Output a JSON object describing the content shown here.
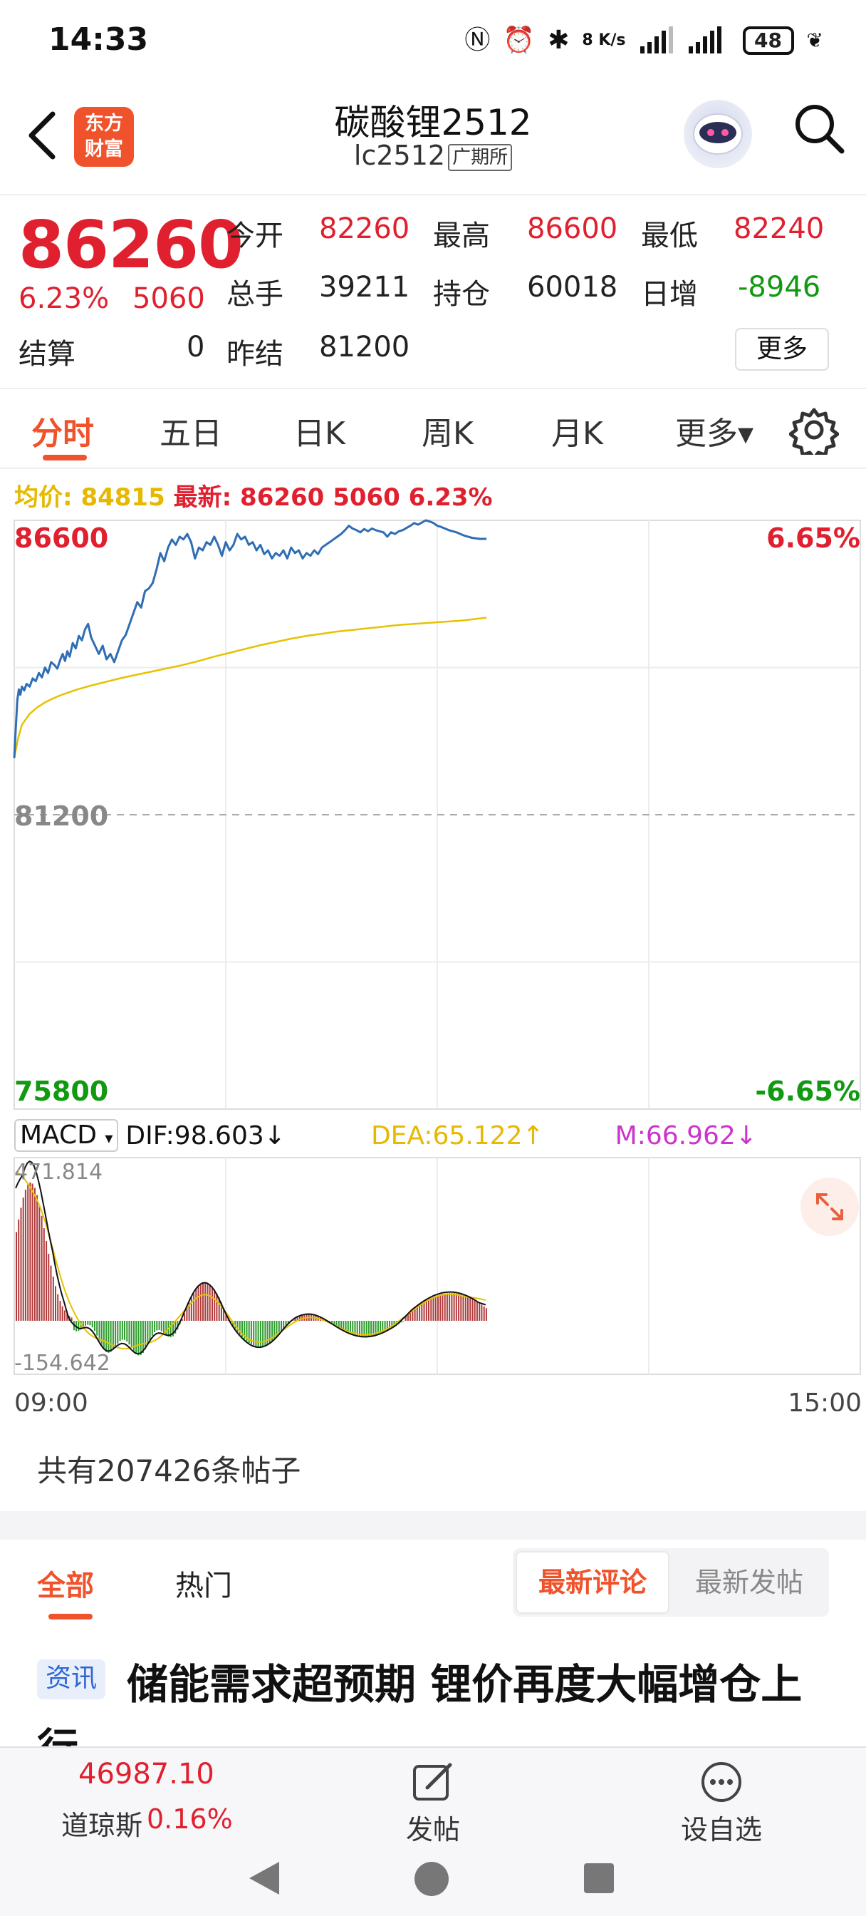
{
  "status_bar": {
    "time": "14:33",
    "net_speed": "8 K/s",
    "battery": "48"
  },
  "header": {
    "title": "碳酸锂2512",
    "code": "lc2512",
    "exchange": "广期所",
    "logo_text": [
      "东方",
      "财富"
    ]
  },
  "quote": {
    "price": "86260",
    "change_pct": "6.23%",
    "change_abs": "5060",
    "settle_label": "结算",
    "settle_value": "0",
    "fields": [
      {
        "label": "今开",
        "value": "82260",
        "color": "#e0202e"
      },
      {
        "label": "最高",
        "value": "86600",
        "color": "#e0202e"
      },
      {
        "label": "最低",
        "value": "82240",
        "color": "#e0202e"
      },
      {
        "label": "总手",
        "value": "39211",
        "color": "#222222"
      },
      {
        "label": "持仓",
        "value": "60018",
        "color": "#222222"
      },
      {
        "label": "日增",
        "value": "-8946",
        "color": "#119911"
      },
      {
        "label": "昨结",
        "value": "81200",
        "color": "#222222"
      }
    ],
    "more_label": "更多"
  },
  "tabs": [
    "分时",
    "五日",
    "日K",
    "周K",
    "月K",
    "更多▾"
  ],
  "active_tab": 0,
  "legend": {
    "avg_label": "均价:",
    "avg_value": "84815",
    "latest_label": "最新:",
    "latest_value": "86260",
    "latest_abs": "5060",
    "latest_pct": "6.23%"
  },
  "macd": {
    "indicator": "MACD",
    "dif": "DIF:98.603↓",
    "dea": "DEA:65.122↑",
    "m": "M:66.962↓"
  },
  "chart_data": [
    {
      "type": "line",
      "xlim": [
        "09:00",
        "15:00"
      ],
      "ylim": [
        75800,
        86600
      ],
      "reference": 81200,
      "y_axis_left": [
        "86600",
        "81200",
        "75800"
      ],
      "y_axis_right": [
        "6.65%",
        "-6.65%"
      ],
      "x_tick_labels": [
        "09:00",
        "15:00"
      ],
      "grid": true,
      "series": [
        {
          "name": "最新",
          "color": "#2f6db5",
          "x": [
            0,
            2,
            4,
            6,
            8,
            10,
            13,
            16,
            20,
            24,
            28,
            32,
            36,
            40,
            44,
            48,
            52,
            56,
            60,
            63,
            66,
            69,
            72,
            76,
            80,
            84,
            88,
            92,
            96,
            100,
            105,
            110,
            115,
            120,
            125,
            130,
            135,
            140,
            145,
            150,
            155,
            160,
            165,
            170,
            175,
            180,
            185,
            190,
            195,
            200,
            205,
            210,
            215,
            220,
            225,
            230,
            235,
            240,
            245,
            250,
            255,
            260,
            265,
            270,
            275,
            280,
            285,
            290,
            295,
            300,
            305,
            310,
            315,
            320,
            325,
            330,
            335,
            340,
            345,
            350,
            355,
            360,
            365,
            370,
            375,
            380,
            385,
            390,
            395,
            400,
            405,
            410,
            415,
            420,
            425,
            430,
            435,
            440,
            445,
            450,
            455,
            460,
            465,
            470,
            475,
            480,
            485,
            490,
            495,
            500,
            505,
            510,
            515,
            520,
            525,
            530,
            535,
            540,
            545,
            550,
            555,
            560,
            565,
            570,
            575,
            580,
            585,
            590,
            595,
            600,
            605,
            610,
            614
          ],
          "values": [
            82240,
            82800,
            83300,
            83500,
            83400,
            83550,
            83480,
            83600,
            83550,
            83700,
            83650,
            83800,
            83720,
            83900,
            83800,
            84000,
            83950,
            83880,
            84050,
            84150,
            84020,
            84200,
            84100,
            84350,
            84250,
            84480,
            84400,
            84600,
            84700,
            84450,
            84300,
            84150,
            84300,
            84050,
            84150,
            84000,
            84200,
            84400,
            84500,
            84700,
            84900,
            85100,
            85000,
            85300,
            85350,
            85450,
            85700,
            86000,
            85850,
            86100,
            86250,
            86150,
            86300,
            86250,
            86350,
            86200,
            85900,
            86100,
            86050,
            86200,
            86150,
            86300,
            86150,
            85950,
            86200,
            86050,
            86150,
            86350,
            86250,
            86300,
            86150,
            86200,
            86050,
            86150,
            85980,
            86050,
            85900,
            86000,
            85950,
            86050,
            85900,
            86100,
            86000,
            86050,
            85900,
            86000,
            85950,
            86050,
            85980,
            86100,
            86150,
            86200,
            86250,
            86300,
            86350,
            86420,
            86500,
            86450,
            86420,
            86380,
            86440,
            86400,
            86450,
            86420,
            86400,
            86380,
            86300,
            86380,
            86350,
            86400,
            86420,
            86460,
            86500,
            86550,
            86520,
            86560,
            86600,
            86580,
            86550,
            86500,
            86480,
            86450,
            86420,
            86400,
            86380,
            86350,
            86320,
            86300,
            86280,
            86270,
            86260,
            86260,
            86260
          ]
        },
        {
          "name": "均价",
          "color": "#e6c200",
          "x": [
            0,
            5,
            10,
            20,
            30,
            40,
            50,
            60,
            70,
            80,
            90,
            100,
            120,
            140,
            160,
            180,
            200,
            220,
            240,
            260,
            280,
            300,
            320,
            340,
            360,
            380,
            400,
            420,
            440,
            460,
            480,
            500,
            520,
            540,
            560,
            580,
            600,
            614
          ],
          "values": [
            82240,
            82600,
            82850,
            83050,
            83170,
            83260,
            83330,
            83390,
            83440,
            83490,
            83530,
            83570,
            83640,
            83710,
            83770,
            83830,
            83890,
            83950,
            84020,
            84100,
            84170,
            84240,
            84310,
            84370,
            84430,
            84480,
            84520,
            84560,
            84590,
            84620,
            84650,
            84680,
            84700,
            84720,
            84740,
            84760,
            84790,
            84815
          ]
        }
      ]
    },
    {
      "type": "bar",
      "indicator": "MACD",
      "ylim": [
        -154.642,
        471.814
      ],
      "y_axis_labels": [
        "471.814",
        "-154.642"
      ],
      "series": [
        {
          "name": "DIF",
          "color": "#111111"
        },
        {
          "name": "DEA",
          "color": "#e6c200"
        },
        {
          "name": "M",
          "positive_color": "#b03a3a",
          "negative_color": "#2f9a2f"
        }
      ]
    }
  ],
  "posts": {
    "count_text": "共有207426条帖子",
    "tabs": [
      "全部",
      "热门"
    ],
    "sort": [
      "最新评论",
      "最新发帖"
    ],
    "news_tag": "资讯",
    "news_title": "储能需求超预期 锂价再度大幅增仓上行"
  },
  "bottom_bar": {
    "index_value": "46987.10",
    "index_name": "道琼斯",
    "index_pct": "0.16%",
    "post_label": "发帖",
    "watch_label": "设自选"
  }
}
